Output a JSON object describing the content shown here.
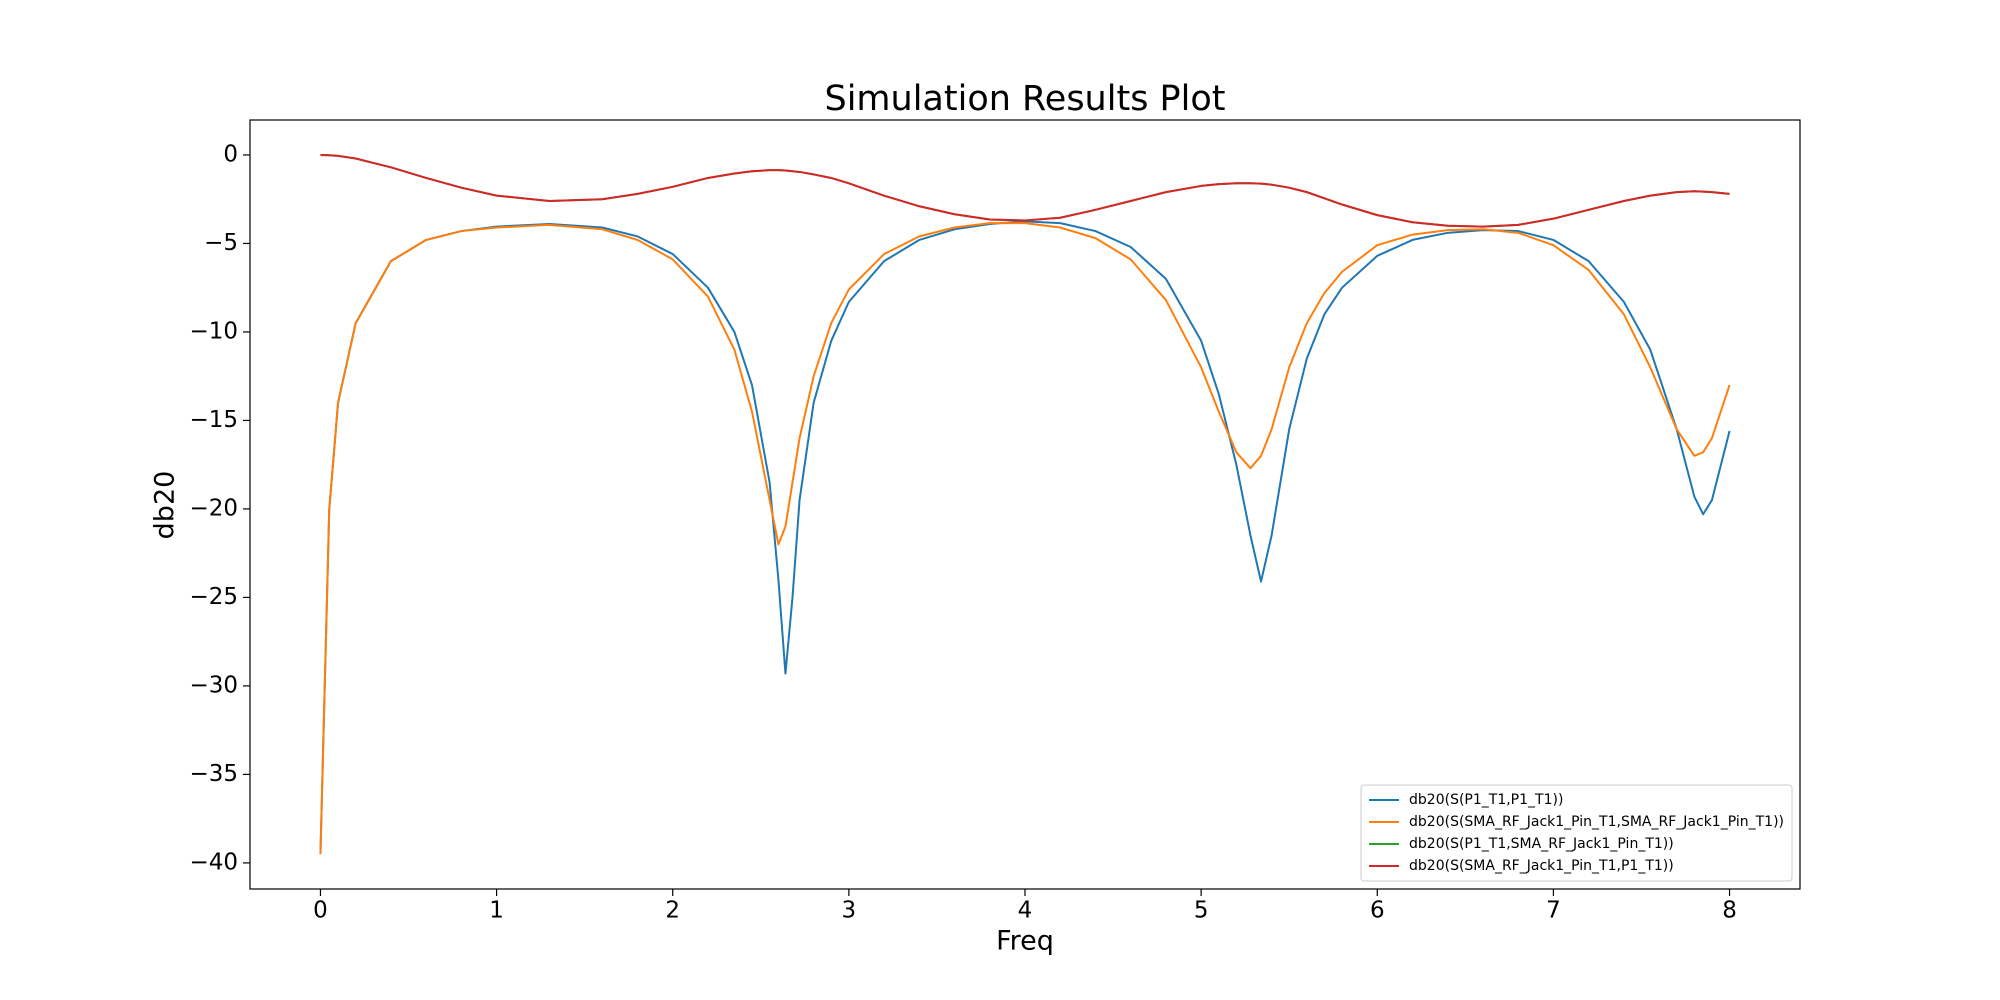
{
  "chart_data": {
    "type": "line",
    "title": "Simulation Results Plot",
    "x_label": "Freq",
    "y_label": "db20",
    "x": [
      0,
      0.05,
      0.1,
      0.2,
      0.4,
      0.6,
      0.8,
      1.0,
      1.3,
      1.6,
      1.8,
      2.0,
      2.2,
      2.35,
      2.45,
      2.55,
      2.6,
      2.64,
      2.68,
      2.72,
      2.8,
      2.9,
      3.0,
      3.2,
      3.4,
      3.6,
      3.8,
      4.0,
      4.2,
      4.4,
      4.6,
      4.8,
      5.0,
      5.1,
      5.2,
      5.28,
      5.34,
      5.4,
      5.5,
      5.6,
      5.7,
      5.8,
      6.0,
      6.2,
      6.4,
      6.6,
      6.8,
      7.0,
      7.2,
      7.4,
      7.55,
      7.7,
      7.8,
      7.85,
      7.9,
      8.0
    ],
    "series": [
      {
        "name": "db20(S(P1_T1,P1_T1))",
        "color": "#1f77b4",
        "values": [
          -39.5,
          -20,
          -14,
          -9.5,
          -6,
          -4.8,
          -4.3,
          -4.05,
          -3.9,
          -4.1,
          -4.6,
          -5.6,
          -7.5,
          -10,
          -13,
          -18.5,
          -24,
          -29.3,
          -25,
          -19.5,
          -14,
          -10.5,
          -8.3,
          -6,
          -4.8,
          -4.2,
          -3.9,
          -3.75,
          -3.85,
          -4.3,
          -5.2,
          -7,
          -10.5,
          -13.5,
          -17.5,
          -21.5,
          -24.1,
          -21.5,
          -15.5,
          -11.5,
          -9,
          -7.5,
          -5.7,
          -4.8,
          -4.4,
          -4.25,
          -4.3,
          -4.8,
          -6,
          -8.3,
          -11,
          -15.5,
          -19.3,
          -20.3,
          -19.5,
          -15.6
        ]
      },
      {
        "name": "db20(S(SMA_RF_Jack1_Pin_T1,SMA_RF_Jack1_Pin_T1))",
        "color": "#ff7f0e",
        "values": [
          -39.5,
          -20,
          -14,
          -9.5,
          -6,
          -4.8,
          -4.3,
          -4.1,
          -3.95,
          -4.2,
          -4.8,
          -5.9,
          -8,
          -11,
          -14.5,
          -19.5,
          -22,
          -21,
          -18.5,
          -16,
          -12.5,
          -9.5,
          -7.6,
          -5.6,
          -4.6,
          -4.1,
          -3.85,
          -3.85,
          -4.1,
          -4.7,
          -5.9,
          -8.2,
          -12,
          -14.5,
          -16.8,
          -17.7,
          -17,
          -15.5,
          -12,
          -9.5,
          -7.8,
          -6.6,
          -5.1,
          -4.5,
          -4.25,
          -4.2,
          -4.4,
          -5.1,
          -6.5,
          -9,
          -12,
          -15.5,
          -17,
          -16.8,
          -16,
          -13
        ]
      },
      {
        "name": "db20(S(P1_T1,SMA_RF_Jack1_Pin_T1))",
        "color": "#2ca02c",
        "values": [
          0,
          -0.02,
          -0.05,
          -0.2,
          -0.7,
          -1.3,
          -1.85,
          -2.3,
          -2.6,
          -2.5,
          -2.2,
          -1.8,
          -1.3,
          -1.05,
          -0.92,
          -0.86,
          -0.86,
          -0.88,
          -0.92,
          -0.96,
          -1.1,
          -1.3,
          -1.6,
          -2.3,
          -2.9,
          -3.35,
          -3.65,
          -3.7,
          -3.55,
          -3.1,
          -2.6,
          -2.1,
          -1.75,
          -1.65,
          -1.6,
          -1.6,
          -1.62,
          -1.68,
          -1.85,
          -2.1,
          -2.45,
          -2.8,
          -3.4,
          -3.8,
          -4.0,
          -4.05,
          -3.95,
          -3.6,
          -3.1,
          -2.6,
          -2.3,
          -2.1,
          -2.05,
          -2.07,
          -2.1,
          -2.2
        ]
      },
      {
        "name": "db20(S(SMA_RF_Jack1_Pin_T1,P1_T1))",
        "color": "#d62728",
        "values": [
          0,
          -0.02,
          -0.05,
          -0.2,
          -0.7,
          -1.3,
          -1.85,
          -2.3,
          -2.6,
          -2.5,
          -2.2,
          -1.8,
          -1.3,
          -1.05,
          -0.92,
          -0.86,
          -0.86,
          -0.88,
          -0.92,
          -0.96,
          -1.1,
          -1.3,
          -1.6,
          -2.3,
          -2.9,
          -3.35,
          -3.65,
          -3.7,
          -3.55,
          -3.1,
          -2.6,
          -2.1,
          -1.75,
          -1.65,
          -1.6,
          -1.6,
          -1.62,
          -1.68,
          -1.85,
          -2.1,
          -2.45,
          -2.8,
          -3.4,
          -3.8,
          -4.0,
          -4.05,
          -3.95,
          -3.6,
          -3.1,
          -2.6,
          -2.3,
          -2.1,
          -2.05,
          -2.07,
          -2.1,
          -2.2
        ]
      }
    ],
    "xlim": [
      -0.4,
      8.4
    ],
    "xticks": [
      0,
      1,
      2,
      3,
      4,
      5,
      6,
      7,
      8
    ],
    "ylim": [
      -41.475,
      1.975
    ],
    "yticks": [
      0,
      {
        "value": -5,
        "label": "−5"
      },
      {
        "value": -10,
        "label": "−10"
      },
      {
        "value": -15,
        "label": "−15"
      },
      {
        "value": -20,
        "label": "−20"
      },
      {
        "value": -25,
        "label": "−25"
      },
      {
        "value": -30,
        "label": "−30"
      },
      {
        "value": -35,
        "label": "−35"
      },
      {
        "value": -40,
        "label": "−40"
      }
    ],
    "grid": false,
    "legend": "lower right"
  }
}
